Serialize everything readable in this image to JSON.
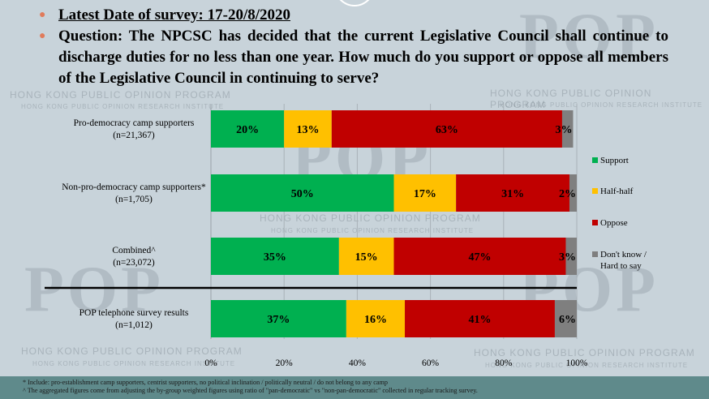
{
  "header": {
    "date_label": "Latest Date of survey: 17-20/8/2020",
    "question": "Question: The NPCSC has decided that the current Legislative Council shall continue to discharge duties for no less than one year. How much do you support or oppose all members of the Legislative Council in continuing to serve?"
  },
  "watermark": {
    "logo": "POP",
    "program": "HONG KONG PUBLIC OPINION PROGRAM",
    "institute": "HONG KONG PUBLIC OPINION RESEARCH INSTITUTE"
  },
  "colors": {
    "support": "#00b050",
    "half": "#ffc000",
    "oppose": "#c00000",
    "dk": "#7f7f7f",
    "bullet": "#e07b5b",
    "background": "#c8d3da",
    "footer": "#5f8a8b"
  },
  "chart_data": {
    "type": "bar",
    "orientation": "horizontal",
    "stacked": true,
    "categories": [
      {
        "name": "Pro-democracy camp supporters",
        "n": "(n=21,367)"
      },
      {
        "name": "Non-pro-democracy camp supporters*",
        "n": "(n=1,705)"
      },
      {
        "name": "Combined^",
        "n": "(n=23,072)"
      },
      {
        "name": "POP telephone survey results",
        "n": "(n=1,012)"
      }
    ],
    "series": [
      {
        "name": "Support",
        "color": "#00b050",
        "values": [
          20,
          50,
          35,
          37
        ],
        "labels": [
          "20%",
          "50%",
          "35%",
          "37%"
        ]
      },
      {
        "name": "Half-half",
        "color": "#ffc000",
        "values": [
          13,
          17,
          15,
          16
        ],
        "labels": [
          "13%",
          "17%",
          "15%",
          "16%"
        ]
      },
      {
        "name": "Oppose",
        "color": "#c00000",
        "values": [
          63,
          31,
          47,
          41
        ],
        "labels": [
          "63%",
          "31%",
          "47%",
          "41%"
        ]
      },
      {
        "name": "Don't know / Hard to say",
        "color": "#7f7f7f",
        "values": [
          3,
          2,
          3,
          6
        ],
        "labels": [
          "3%",
          "2%",
          "3%",
          "6%"
        ]
      }
    ],
    "xlim": [
      0,
      100
    ],
    "x_ticks": [
      "0%",
      "20%",
      "40%",
      "60%",
      "80%",
      "100%"
    ],
    "legend_position": "right",
    "separator_after_category": 2,
    "gridlines": true
  },
  "footnotes": [
    "*  Include: pro-establishment camp supporters, centrist supporters, no political inclination / politically neutral / do not belong to any camp",
    "^  The aggregated figures come from adjusting the by-group weighted figures using ratio of \"pan-democratic\" vs \"non-pan-democratic\" collected in regular tracking survey."
  ]
}
